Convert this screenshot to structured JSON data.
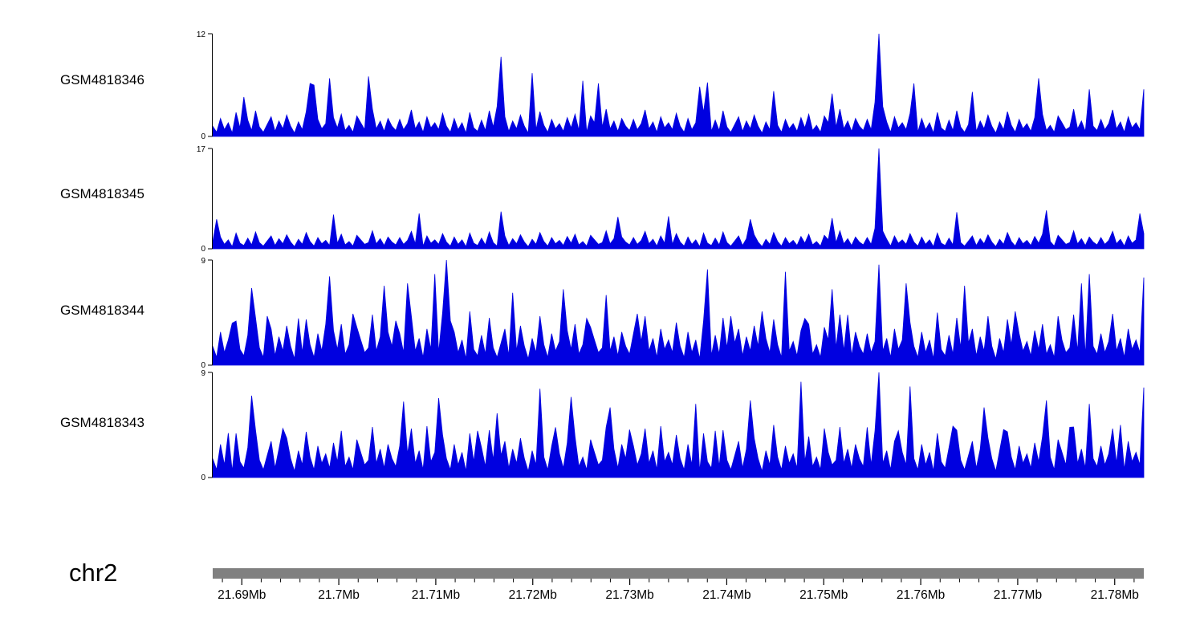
{
  "chart_data": {
    "type": "area",
    "title": "",
    "description": "Genome browser coverage tracks, four samples, chromosome 2 region 21.69-21.78 Mb",
    "signal_color": "#0000E0",
    "axis_color": "#000000",
    "ideogram_color": "#808080",
    "n_points": 240,
    "x_range_mb": [
      21.687,
      21.783
    ],
    "shared_noise_pattern": [
      1.2,
      0.5,
      2.1,
      0.8,
      1.6,
      0.4,
      2.8,
      1.0,
      0.6,
      1.9,
      0.7,
      3.0,
      1.1,
      0.5,
      1.4,
      2.3,
      0.6,
      1.8,
      0.9,
      2.5,
      1.2,
      0.4,
      1.7,
      0.8,
      2.9,
      1.3,
      0.5,
      2.0,
      0.9,
      1.5,
      0.6,
      2.2,
      1.0,
      2.6,
      0.7,
      1.3,
      0.5,
      2.4,
      1.6,
      0.8,
      1.1,
      3.2,
      0.9,
      1.8,
      0.6,
      2.1,
      1.2,
      0.7,
      2.0,
      0.8,
      1.5,
      3.1,
      0.9,
      1.7,
      0.5,
      2.3,
      1.0,
      1.6,
      0.8,
      2.7
    ],
    "panels": [
      {
        "label": "GSM4818346",
        "ylim": [
          0,
          12
        ],
        "scale": 1.0,
        "peaks": [
          [
            8,
            4.6
          ],
          [
            25,
            6.2
          ],
          [
            26,
            6.0
          ],
          [
            30,
            6.8
          ],
          [
            40,
            7.0
          ],
          [
            73,
            3.5
          ],
          [
            74,
            9.3
          ],
          [
            82,
            7.4
          ],
          [
            95,
            6.5
          ],
          [
            99,
            6.2
          ],
          [
            125,
            5.8
          ],
          [
            127,
            6.3
          ],
          [
            144,
            5.3
          ],
          [
            159,
            5.0
          ],
          [
            170,
            4.0
          ],
          [
            171,
            12
          ],
          [
            172,
            3.5
          ],
          [
            180,
            6.2
          ],
          [
            195,
            5.2
          ],
          [
            212,
            6.8
          ],
          [
            225,
            5.5
          ],
          [
            239,
            5.5
          ]
        ]
      },
      {
        "label": "GSM4818345",
        "ylim": [
          0,
          17
        ],
        "scale": 0.95,
        "peaks": [
          [
            1,
            5.0
          ],
          [
            31,
            5.8
          ],
          [
            53,
            6.0
          ],
          [
            74,
            6.3
          ],
          [
            104,
            5.4
          ],
          [
            117,
            5.5
          ],
          [
            138,
            5.0
          ],
          [
            159,
            5.2
          ],
          [
            170,
            3.5
          ],
          [
            171,
            17
          ],
          [
            172,
            3.0
          ],
          [
            191,
            6.2
          ],
          [
            214,
            6.5
          ],
          [
            238,
            6.0
          ]
        ]
      },
      {
        "label": "GSM4818344",
        "ylim": [
          0,
          9
        ],
        "scale": 1.35,
        "peaks": [
          [
            5,
            3.6
          ],
          [
            10,
            6.6
          ],
          [
            14,
            4.2
          ],
          [
            22,
            4.0
          ],
          [
            29,
            3.5
          ],
          [
            30,
            7.6
          ],
          [
            36,
            4.4
          ],
          [
            44,
            6.8
          ],
          [
            47,
            3.8
          ],
          [
            50,
            7.0
          ],
          [
            57,
            7.8
          ],
          [
            59,
            4.5
          ],
          [
            60,
            9.0
          ],
          [
            61,
            3.8
          ],
          [
            66,
            4.6
          ],
          [
            77,
            6.2
          ],
          [
            84,
            4.2
          ],
          [
            90,
            6.5
          ],
          [
            96,
            4.0
          ],
          [
            101,
            6.0
          ],
          [
            109,
            4.4
          ],
          [
            127,
            8.2
          ],
          [
            133,
            4.2
          ],
          [
            141,
            4.6
          ],
          [
            147,
            8.0
          ],
          [
            152,
            4.0
          ],
          [
            159,
            6.5
          ],
          [
            163,
            4.3
          ],
          [
            171,
            8.6
          ],
          [
            178,
            7.0
          ],
          [
            186,
            4.5
          ],
          [
            193,
            6.8
          ],
          [
            199,
            4.2
          ],
          [
            206,
            4.6
          ],
          [
            217,
            4.2
          ],
          [
            223,
            7.0
          ],
          [
            225,
            7.8
          ],
          [
            231,
            4.4
          ],
          [
            239,
            7.5
          ]
        ]
      },
      {
        "label": "GSM4818343",
        "ylim": [
          0,
          9
        ],
        "scale": 1.35,
        "peaks": [
          [
            4,
            3.8
          ],
          [
            10,
            7.0
          ],
          [
            18,
            4.2
          ],
          [
            33,
            4.0
          ],
          [
            49,
            6.5
          ],
          [
            55,
            4.4
          ],
          [
            58,
            6.8
          ],
          [
            68,
            4.0
          ],
          [
            73,
            5.5
          ],
          [
            84,
            7.6
          ],
          [
            88,
            4.3
          ],
          [
            92,
            6.9
          ],
          [
            102,
            6.0
          ],
          [
            107,
            4.1
          ],
          [
            115,
            4.4
          ],
          [
            124,
            6.3
          ],
          [
            129,
            4.0
          ],
          [
            138,
            6.6
          ],
          [
            144,
            4.5
          ],
          [
            151,
            8.2
          ],
          [
            157,
            4.2
          ],
          [
            168,
            4.3
          ],
          [
            170,
            4.0
          ],
          [
            171,
            9.0
          ],
          [
            176,
            4.0
          ],
          [
            179,
            7.8
          ],
          [
            190,
            4.4
          ],
          [
            198,
            6.0
          ],
          [
            203,
            4.1
          ],
          [
            214,
            6.6
          ],
          [
            220,
            4.3
          ],
          [
            225,
            6.3
          ],
          [
            233,
            4.5
          ],
          [
            239,
            7.7
          ]
        ]
      }
    ],
    "x_axis": {
      "chromosome": "chr2",
      "tick_values": [
        21.69,
        21.7,
        21.71,
        21.72,
        21.73,
        21.74,
        21.75,
        21.76,
        21.77,
        21.78
      ],
      "tick_labels": [
        "21.69Mb",
        "21.7Mb",
        "21.71Mb",
        "21.72Mb",
        "21.73Mb",
        "21.74Mb",
        "21.75Mb",
        "21.76Mb",
        "21.77Mb",
        "21.78Mb"
      ],
      "minor_step": 0.002
    }
  },
  "chromosome": {
    "label": "chr2"
  }
}
